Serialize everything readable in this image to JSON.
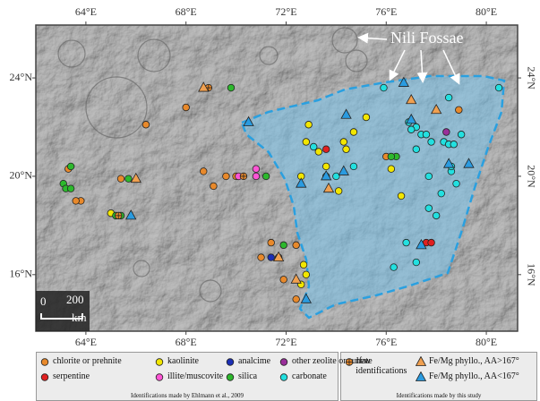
{
  "chart_data": {
    "type": "map",
    "annotation": "Nili Fossae",
    "scale_bar": {
      "labels": [
        "0",
        "200"
      ],
      "unit": "km"
    },
    "xlim": [
      62.0,
      81.25
    ],
    "ylim": [
      13.7,
      26.15
    ],
    "xticks": [
      {
        "value": 64,
        "label": "64°E"
      },
      {
        "value": 68,
        "label": "68°E"
      },
      {
        "value": 72,
        "label": "72°E"
      },
      {
        "value": 76,
        "label": "76°E"
      },
      {
        "value": 80,
        "label": "80°E"
      }
    ],
    "yticks": [
      {
        "value": 16,
        "label": "16°N"
      },
      {
        "value": 20,
        "label": "20°N"
      },
      {
        "value": 24,
        "label": "24°N"
      }
    ],
    "legend_notes": [
      "Identifications made by Ehlmann et al., 2009",
      "Identifications made by this study"
    ],
    "series": [
      {
        "name": "chlorite or prehnite",
        "color": "#e8892b",
        "marker": "circle",
        "x": [
          68.0,
          66.4,
          63.3,
          63.8,
          63.6,
          65.4,
          68.7,
          69.1,
          69.6,
          71.4,
          71.0,
          71.7,
          72.4,
          71.9,
          72.4,
          76.0,
          78.9,
          70.0
        ],
        "y": [
          22.8,
          22.1,
          20.3,
          19.0,
          19.0,
          19.9,
          20.2,
          19.6,
          20.0,
          17.3,
          16.7,
          16.7,
          17.2,
          15.8,
          15.0,
          20.8,
          22.7,
          20.0
        ]
      },
      {
        "name": "kaolinite",
        "color": "#f2e600",
        "marker": "circle",
        "x": [
          72.9,
          72.8,
          73.3,
          73.6,
          74.3,
          74.4,
          75.2,
          74.7,
          74.1,
          72.6,
          76.2,
          76.6,
          72.7,
          72.8,
          72.6,
          65.0
        ],
        "y": [
          22.1,
          21.4,
          21.0,
          20.4,
          21.4,
          21.1,
          22.4,
          21.8,
          19.4,
          20.0,
          20.3,
          19.2,
          16.4,
          16.0,
          15.6,
          18.5
        ]
      },
      {
        "name": "analcime",
        "color": "#1c2fb5",
        "marker": "circle",
        "x": [
          71.4
        ],
        "y": [
          16.7
        ]
      },
      {
        "name": "other zeolite or sulfate",
        "color": "#9a2f9a",
        "marker": "circle",
        "x": [
          78.4
        ],
        "y": [
          21.8
        ]
      },
      {
        "name": "serpentine",
        "color": "#e02020",
        "marker": "circle",
        "x": [
          73.6,
          77.6,
          77.8
        ],
        "y": [
          21.1,
          17.3,
          17.3
        ]
      },
      {
        "name": "illite/muscovite",
        "color": "#ff55d5",
        "marker": "circle",
        "x": [
          70.1,
          70.8,
          70.8
        ],
        "y": [
          20.0,
          20.3,
          20.0
        ]
      },
      {
        "name": "silica",
        "color": "#2db82d",
        "marker": "circle",
        "x": [
          69.8,
          63.1,
          63.2,
          63.4,
          65.7,
          65.2,
          65.4,
          76.4,
          76.2,
          71.2,
          71.9,
          63.4
        ],
        "y": [
          23.6,
          19.7,
          19.5,
          19.5,
          19.9,
          18.4,
          18.4,
          20.8,
          20.8,
          20.0,
          17.2,
          20.4
        ]
      },
      {
        "name": "carbonate",
        "color": "#22e0e0",
        "marker": "circle",
        "x": [
          75.9,
          78.5,
          76.9,
          77.2,
          77.0,
          77.4,
          77.6,
          77.8,
          78.3,
          78.5,
          78.7,
          79.0,
          77.2,
          77.7,
          78.6,
          78.8,
          78.6,
          78.2,
          77.7,
          78.0,
          73.1,
          74.7,
          76.8,
          76.3,
          77.2,
          80.5,
          73.6,
          74.0
        ],
        "y": [
          23.6,
          23.2,
          22.2,
          22.0,
          21.9,
          21.7,
          21.7,
          21.4,
          21.4,
          21.3,
          21.3,
          21.7,
          21.1,
          20.0,
          20.2,
          19.7,
          20.4,
          19.3,
          18.7,
          18.4,
          21.2,
          20.4,
          17.3,
          16.3,
          16.5,
          23.6,
          20.0,
          20.0
        ]
      },
      {
        "name": "new identifications",
        "color": "#e8892b",
        "marker": "circle-plus",
        "x": [
          68.9,
          70.3,
          65.3
        ],
        "y": [
          23.6,
          20.0,
          18.4
        ]
      },
      {
        "name": "Fe/Mg phyllo., AA>167°",
        "color": "#f0a050",
        "marker": "triangle",
        "x": [
          68.7,
          66.0,
          71.7,
          72.4,
          77.0,
          78.0,
          73.7
        ],
        "y": [
          23.6,
          19.9,
          16.7,
          15.8,
          23.1,
          22.7,
          19.5
        ]
      },
      {
        "name": "Fe/Mg phyllo., AA<167°",
        "color": "#2a9be0",
        "marker": "triangle",
        "x": [
          70.5,
          74.4,
          77.0,
          79.3,
          78.5,
          73.6,
          65.8,
          72.6,
          72.8,
          76.7,
          77.4,
          74.3
        ],
        "y": [
          22.2,
          22.5,
          22.3,
          20.5,
          20.5,
          20.0,
          18.4,
          19.7,
          15.0,
          23.8,
          17.2,
          20.2
        ]
      }
    ]
  }
}
